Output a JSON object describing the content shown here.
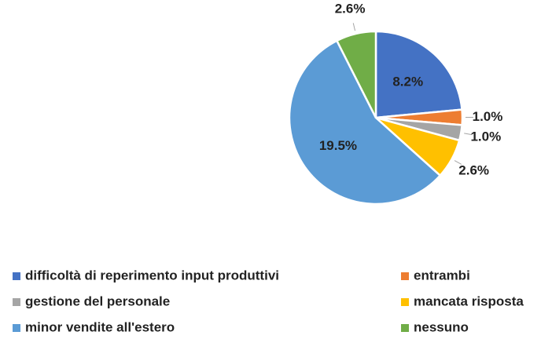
{
  "chart_data": {
    "type": "pie",
    "categories": [
      "difficoltà di reperimento input produttivi",
      "entrambi",
      "gestione del personale",
      "mancata risposta",
      "minor vendite all'estero",
      "nessuno"
    ],
    "values": [
      8.2,
      1.0,
      1.0,
      2.6,
      19.5,
      2.6
    ],
    "value_labels": [
      "8.2%",
      "1.0%",
      "1.0%",
      "2.6%",
      "19.5%",
      "2.6%"
    ],
    "colors": [
      "#4472c4",
      "#ed7d31",
      "#a5a5a5",
      "#ffc000",
      "#5b9bd5",
      "#70ad47"
    ],
    "legend": "bottom"
  }
}
